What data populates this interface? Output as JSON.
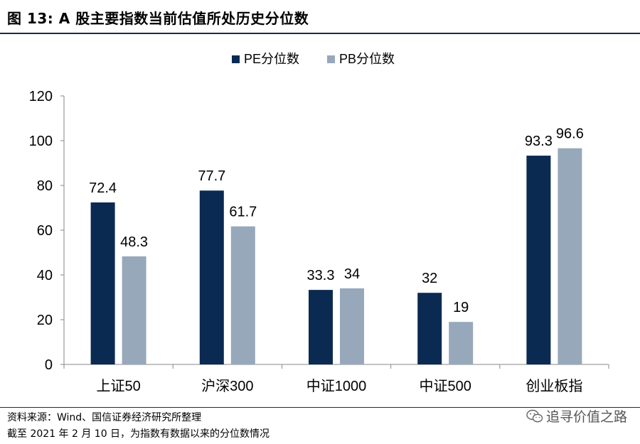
{
  "header": {
    "title": "图 13:  A 股主要指数当前估值所处历史分位数"
  },
  "chart_data": {
    "type": "bar",
    "categories": [
      "上证50",
      "沪深300",
      "中证1000",
      "中证500",
      "创业板指"
    ],
    "series": [
      {
        "name": "PE分位数",
        "values": [
          72.4,
          77.7,
          33.3,
          32,
          93.3
        ],
        "color": "#0b2a52"
      },
      {
        "name": "PB分位数",
        "values": [
          48.3,
          61.7,
          34,
          19,
          96.6
        ],
        "color": "#97a8ba"
      }
    ],
    "data_labels": [
      [
        "72.4",
        "77.7",
        "33.3",
        "32",
        "93.3"
      ],
      [
        "48.3",
        "61.7",
        "34",
        "19",
        "96.6"
      ]
    ],
    "ylim": [
      0,
      120
    ],
    "yticks": [
      0,
      20,
      40,
      60,
      80,
      100,
      120
    ],
    "legend_position": "top-center",
    "grid": false
  },
  "footer": {
    "source": "资料来源：Wind、国信证券经济研究所整理",
    "note": "截至 2021 年 2 月 10 日，为指数有数据以来的分位数情况",
    "watermark": "追寻价值之路",
    "watermark_icon": "wechat-icon"
  }
}
